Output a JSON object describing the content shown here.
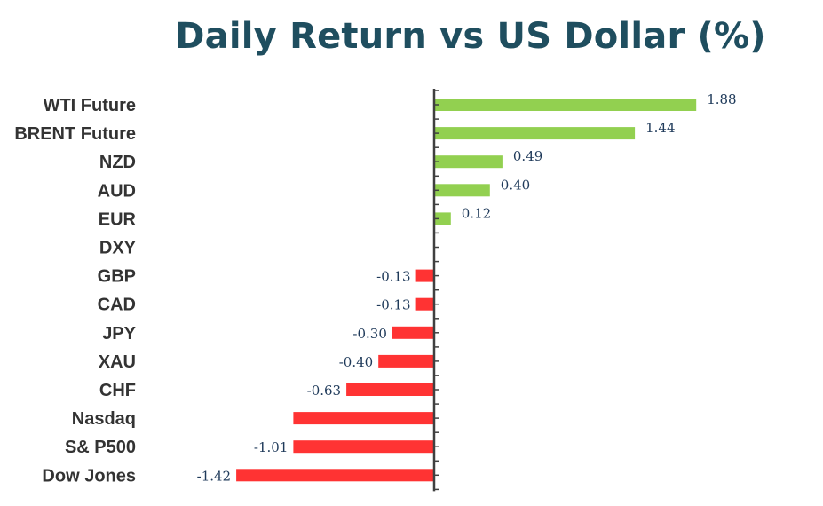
{
  "chart_data": {
    "type": "bar",
    "orientation": "horizontal",
    "title": "Daily Return vs US Dollar (%)",
    "categories": [
      "WTI Future",
      "BRENT Future",
      "NZD",
      "AUD",
      "EUR",
      "DXY",
      "GBP",
      "CAD",
      "JPY",
      "XAU",
      "CHF",
      "Nasdaq",
      "S& P500",
      "Dow Jones"
    ],
    "values": [
      1.88,
      1.44,
      0.49,
      0.4,
      0.12,
      0.0,
      -0.13,
      -0.13,
      -0.3,
      -0.4,
      -0.63,
      -1.01,
      -1.01,
      -1.42
    ],
    "data_labels": [
      "1.88",
      "1.44",
      "0.49",
      "0.40",
      "0.12",
      "",
      "-0.13",
      "-0.13",
      "-0.30",
      "-0.40",
      "-0.63",
      "",
      "-1.01",
      "-1.42"
    ],
    "xlim": [
      -1.42,
      1.88
    ],
    "grid": false,
    "legend": "none",
    "colors": {
      "positive": "#92d050",
      "negative": "#ff3333",
      "axis": "#404040",
      "title": "#1f4e5f",
      "category_label": "#333333",
      "value_label": "#1f3a5a"
    }
  }
}
